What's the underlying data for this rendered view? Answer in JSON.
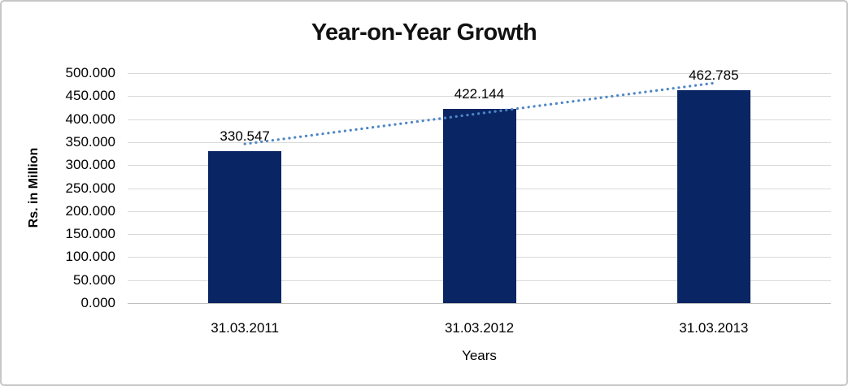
{
  "chart_data": {
    "type": "bar",
    "title": "Year-on-Year Growth",
    "categories": [
      "31.03.2011",
      "31.03.2012",
      "31.03.2013"
    ],
    "values": [
      330.547,
      422.144,
      462.785
    ],
    "data_labels": [
      "330.547",
      "422.144",
      "462.785"
    ],
    "xlabel": "Years",
    "ylabel": "Rs. in Million",
    "ylim": [
      0,
      500
    ],
    "ytick_step": 50,
    "ytick_labels": [
      "500.000",
      "450.000",
      "400.000",
      "350.000",
      "300.000",
      "250.000",
      "200.000",
      "150.000",
      "100.000",
      "50.000",
      "0.000"
    ],
    "grid": true,
    "legend": "none",
    "trendline": {
      "type": "linear",
      "style": "dotted",
      "color": "#4F86C6"
    },
    "colors": {
      "bar": "#0A2563",
      "gridline": "#D9D9D9",
      "axis_line": "#BFBFBF",
      "text": "#000000",
      "frame_border": "#C6C6C6",
      "background": "#FFFFFF"
    }
  }
}
